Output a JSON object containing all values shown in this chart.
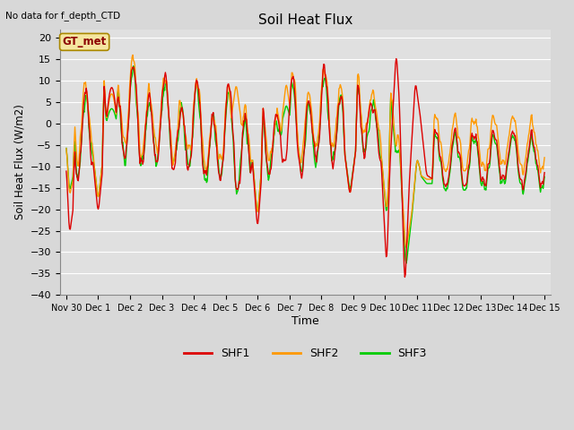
{
  "title": "Soil Heat Flux",
  "note": "No data for f_depth_CTD",
  "ylabel": "Soil Heat Flux (W/m2)",
  "xlabel": "Time",
  "legend_label": "GT_met",
  "series_labels": [
    "SHF1",
    "SHF2",
    "SHF3"
  ],
  "series_colors": [
    "#dd0000",
    "#ff9900",
    "#00cc00"
  ],
  "ylim": [
    -40,
    22
  ],
  "yticks": [
    -40,
    -35,
    -30,
    -25,
    -20,
    -15,
    -10,
    -5,
    0,
    5,
    10,
    15,
    20
  ],
  "xtick_labels": [
    "Nov 30",
    "Dec 1",
    "Dec 2",
    "Dec 3",
    "Dec 4",
    "Dec 5",
    "Dec 6",
    "Dec 7",
    "Dec 8",
    "Dec 9",
    "Dec 10",
    "Dec 11",
    "Dec 12",
    "Dec 13",
    "Dec 14",
    "Dec 15"
  ],
  "background_color": "#d8d8d8",
  "plot_bg_color": "#e0e0e0",
  "grid_color": "#ffffff",
  "linewidth": 1.0
}
